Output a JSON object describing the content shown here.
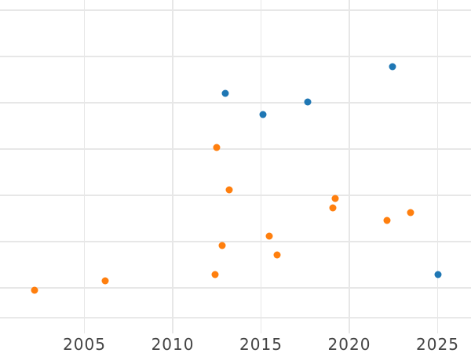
{
  "chart_data": {
    "type": "scatter",
    "title": "",
    "xlabel": "",
    "ylabel": "",
    "x_tick_labels": [
      "2005",
      "2010",
      "2015",
      "2020",
      "2025"
    ],
    "x_ticks": [
      2005,
      2010,
      2015,
      2020,
      2025
    ],
    "x_range": [
      2000.22,
      2026.89
    ],
    "y_range": [
      0,
      7.22
    ],
    "y_gridline_values": [
      1,
      2,
      3,
      4,
      5,
      6,
      7
    ],
    "y_tick_labels_visible": false,
    "grid": true,
    "legend": "none",
    "marker_size_px": 9,
    "series": [
      {
        "name": "series-blue",
        "color": "#1f77b4",
        "points": [
          {
            "x": 2012.97,
            "y": 5.21
          },
          {
            "x": 2015.12,
            "y": 4.75
          },
          {
            "x": 2017.66,
            "y": 5.02
          },
          {
            "x": 2022.44,
            "y": 5.78
          },
          {
            "x": 2025.04,
            "y": 1.29
          }
        ]
      },
      {
        "name": "series-orange",
        "color": "#ff7f0e",
        "points": [
          {
            "x": 2002.19,
            "y": 0.95
          },
          {
            "x": 2006.19,
            "y": 1.16
          },
          {
            "x": 2012.4,
            "y": 1.28
          },
          {
            "x": 2012.48,
            "y": 4.03
          },
          {
            "x": 2012.81,
            "y": 1.92
          },
          {
            "x": 2013.21,
            "y": 3.12
          },
          {
            "x": 2015.45,
            "y": 2.12
          },
          {
            "x": 2015.9,
            "y": 1.72
          },
          {
            "x": 2019.07,
            "y": 2.73
          },
          {
            "x": 2019.2,
            "y": 2.93
          },
          {
            "x": 2022.12,
            "y": 2.46
          },
          {
            "x": 2023.45,
            "y": 2.62
          }
        ]
      }
    ],
    "colors": {
      "background": "#ffffff",
      "grid": "#e7e7e7",
      "axis_baseline": "#e9e9e9",
      "tick_label": "#444444"
    }
  }
}
